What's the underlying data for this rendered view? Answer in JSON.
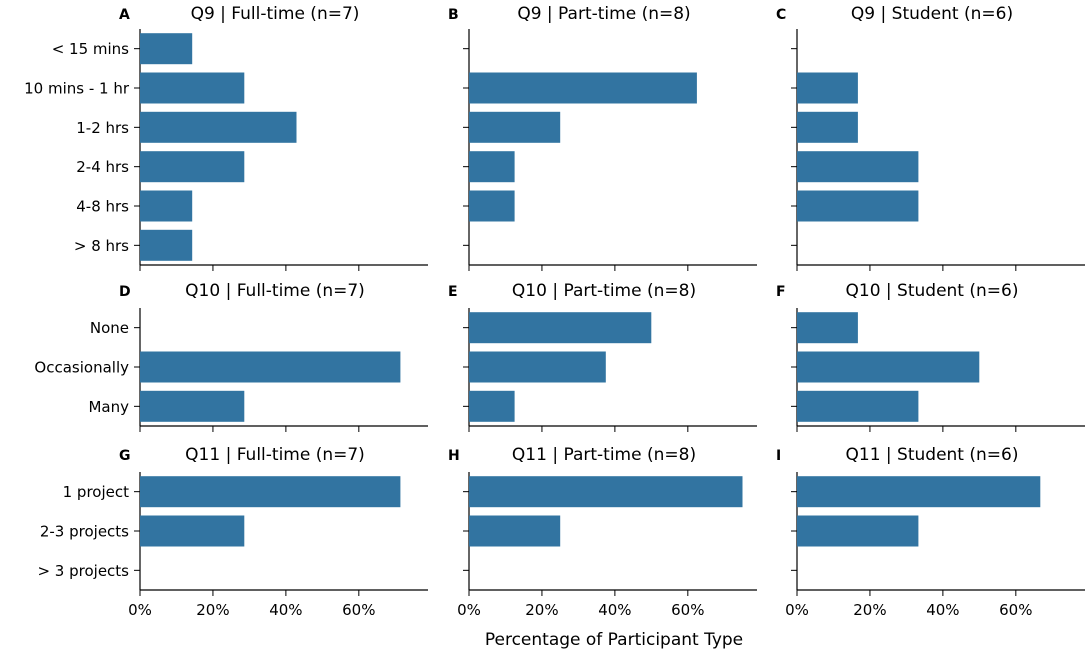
{
  "figure": {
    "xlabel": "Percentage of Participant Type",
    "bar_color": "#3274a1",
    "x_ticks": [
      "0%",
      "20%",
      "40%",
      "60%"
    ]
  },
  "chart_data": [
    {
      "letter": "A",
      "type": "bar",
      "orientation": "horizontal",
      "title": "Q9 | Full-time (n=7)",
      "categories": [
        "< 15 mins",
        "10 mins - 1 hr",
        "1-2 hrs",
        "2-4 hrs",
        "4-8 hrs",
        "> 8 hrs"
      ],
      "values": [
        14.3,
        28.6,
        42.9,
        28.6,
        14.3,
        14.3
      ],
      "xlim": [
        0,
        80
      ],
      "x_unit": "%"
    },
    {
      "letter": "B",
      "type": "bar",
      "orientation": "horizontal",
      "title": "Q9 | Part-time (n=8)",
      "categories": [
        "< 15 mins",
        "10 mins - 1 hr",
        "1-2 hrs",
        "2-4 hrs",
        "4-8 hrs",
        "> 8 hrs"
      ],
      "values": [
        0,
        62.5,
        25,
        12.5,
        12.5,
        0
      ],
      "xlim": [
        0,
        80
      ],
      "x_unit": "%"
    },
    {
      "letter": "C",
      "type": "bar",
      "orientation": "horizontal",
      "title": "Q9 | Student (n=6)",
      "categories": [
        "< 15 mins",
        "10 mins - 1 hr",
        "1-2 hrs",
        "2-4 hrs",
        "4-8 hrs",
        "> 8 hrs"
      ],
      "values": [
        0,
        16.7,
        16.7,
        33.3,
        33.3,
        0
      ],
      "xlim": [
        0,
        80
      ],
      "x_unit": "%"
    },
    {
      "letter": "D",
      "type": "bar",
      "orientation": "horizontal",
      "title": "Q10 | Full-time (n=7)",
      "categories": [
        "None",
        "Occasionally",
        "Many"
      ],
      "values": [
        0,
        71.4,
        28.6
      ],
      "xlim": [
        0,
        80
      ],
      "x_unit": "%"
    },
    {
      "letter": "E",
      "type": "bar",
      "orientation": "horizontal",
      "title": "Q10 | Part-time (n=8)",
      "categories": [
        "None",
        "Occasionally",
        "Many"
      ],
      "values": [
        50,
        37.5,
        12.5
      ],
      "xlim": [
        0,
        80
      ],
      "x_unit": "%"
    },
    {
      "letter": "F",
      "type": "bar",
      "orientation": "horizontal",
      "title": "Q10 | Student (n=6)",
      "categories": [
        "None",
        "Occasionally",
        "Many"
      ],
      "values": [
        16.7,
        50,
        33.3
      ],
      "xlim": [
        0,
        80
      ],
      "x_unit": "%"
    },
    {
      "letter": "G",
      "type": "bar",
      "orientation": "horizontal",
      "title": "Q11 | Full-time (n=7)",
      "categories": [
        "1 project",
        "2-3 projects",
        "> 3 projects"
      ],
      "values": [
        71.4,
        28.6,
        0
      ],
      "xlim": [
        0,
        80
      ],
      "x_unit": "%"
    },
    {
      "letter": "H",
      "type": "bar",
      "orientation": "horizontal",
      "title": "Q11 | Part-time (n=8)",
      "categories": [
        "1 project",
        "2-3 projects",
        "> 3 projects"
      ],
      "values": [
        75,
        25,
        0
      ],
      "xlim": [
        0,
        80
      ],
      "x_unit": "%"
    },
    {
      "letter": "I",
      "type": "bar",
      "orientation": "horizontal",
      "title": "Q11 | Student (n=6)",
      "categories": [
        "1 project",
        "2-3 projects",
        "> 3 projects"
      ],
      "values": [
        66.7,
        33.3,
        0
      ],
      "xlim": [
        0,
        80
      ],
      "x_unit": "%"
    }
  ]
}
